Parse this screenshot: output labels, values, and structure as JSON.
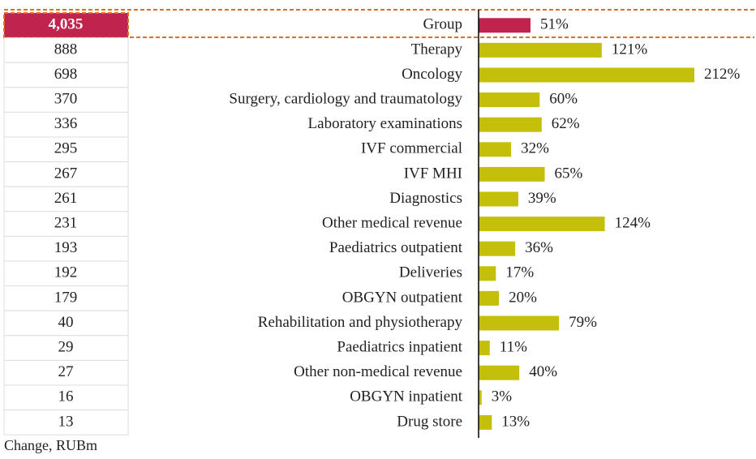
{
  "chart_data": {
    "type": "bar",
    "categories": [
      "Group",
      "Therapy",
      "Oncology",
      "Surgery, cardiology and traumatology",
      "Laboratory examinations",
      "IVF commercial",
      "IVF MHI",
      "Diagnostics",
      "Other medical revenue",
      "Paediatrics outpatient",
      "Deliveries",
      "OBGYN outpatient",
      "Rehabilitation and physiotherapy",
      "Paediatrics inpatient",
      "Other non-medical revenue",
      "OBGYN inpatient",
      "Drug store"
    ],
    "values": [
      51,
      121,
      212,
      60,
      62,
      32,
      65,
      39,
      124,
      36,
      17,
      20,
      79,
      11,
      40,
      3,
      13
    ],
    "value_labels": [
      "51%",
      "121%",
      "212%",
      "60%",
      "62%",
      "32%",
      "65%",
      "39%",
      "124%",
      "36%",
      "17%",
      "20%",
      "79%",
      "11%",
      "40%",
      "3%",
      "13%"
    ],
    "colors": [
      "#c0234e",
      "#c4bf0a",
      "#c4bf0a",
      "#c4bf0a",
      "#c4bf0a",
      "#c4bf0a",
      "#c4bf0a",
      "#c4bf0a",
      "#c4bf0a",
      "#c4bf0a",
      "#c4bf0a",
      "#c4bf0a",
      "#c4bf0a",
      "#c4bf0a",
      "#c4bf0a",
      "#c4bf0a",
      "#c4bf0a"
    ]
  },
  "table": {
    "values": [
      "4,035",
      "888",
      "698",
      "370",
      "336",
      "295",
      "267",
      "261",
      "231",
      "193",
      "192",
      "179",
      "40",
      "29",
      "27",
      "16",
      "13"
    ],
    "caption": "Change, RUBm"
  }
}
